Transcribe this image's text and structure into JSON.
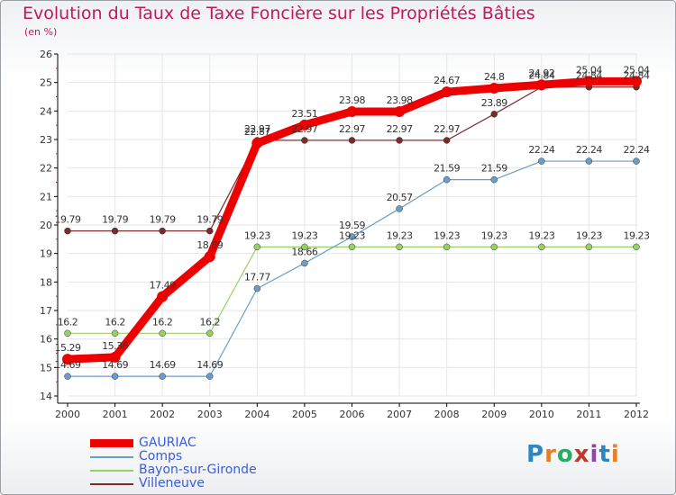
{
  "title": "Evolution du Taux de Taxe Foncière sur les Propriétés Bâties",
  "unit": "(en %)",
  "logo": "Proxiti",
  "chart_data": {
    "type": "line",
    "title": "Evolution du Taux de Taxe Foncière sur les Propriétés Bâties",
    "ylabel": "(en %)",
    "xlabel": "",
    "ylim": [
      14,
      26
    ],
    "y_ticks": [
      "14",
      "15",
      "16",
      "17",
      "18",
      "19",
      "20",
      "21",
      "22",
      "23",
      "24",
      "25",
      "26"
    ],
    "categories": [
      "2000",
      "2001",
      "2002",
      "2003",
      "2004",
      "2005",
      "2006",
      "2007",
      "2008",
      "2009",
      "2010",
      "2011",
      "2012"
    ],
    "series": [
      {
        "name": "GAURIAC",
        "color": "#ee0000",
        "values": [
          15.29,
          15.36,
          17.49,
          18.89,
          22.87,
          23.51,
          23.98,
          23.98,
          24.67,
          24.8,
          24.92,
          25.04,
          25.04
        ],
        "labels": [
          "15.29",
          "15.36",
          "17.49",
          "18.89",
          "22.87",
          "23.51",
          "23.98",
          "23.98",
          "24.67",
          "24.8",
          "24.92",
          "25.04",
          "25.04"
        ]
      },
      {
        "name": "Comps",
        "color": "#6a9ec9",
        "values": [
          14.69,
          14.69,
          14.69,
          14.69,
          17.77,
          18.66,
          19.59,
          20.57,
          21.59,
          21.59,
          22.24,
          22.24,
          22.24
        ],
        "labels": [
          "14.69",
          "14.69",
          "14.69",
          "14.69",
          "17.77",
          "18.66",
          "19.59",
          "20.57",
          "21.59",
          "21.59",
          "22.24",
          "22.24",
          "22.24"
        ]
      },
      {
        "name": "Bayon-sur-Gironde",
        "color": "#99d066",
        "values": [
          16.2,
          16.2,
          16.2,
          16.2,
          19.23,
          19.23,
          19.23,
          19.23,
          19.23,
          19.23,
          19.23,
          19.23,
          19.23
        ],
        "labels": [
          "16.2",
          "16.2",
          "16.2",
          "16.2",
          "19.23",
          "19.23",
          "19.23",
          "19.23",
          "19.23",
          "19.23",
          "19.23",
          "19.23",
          "19.23"
        ]
      },
      {
        "name": "Villeneuve",
        "color": "#7a2b2b",
        "values": [
          19.79,
          19.79,
          19.79,
          19.79,
          22.97,
          22.97,
          22.97,
          22.97,
          22.97,
          23.89,
          24.84,
          24.84,
          24.84
        ],
        "labels": [
          "19.79",
          "19.79",
          "19.79",
          "19.79",
          "22.97",
          "22.97",
          "22.97",
          "22.97",
          "22.97",
          "23.89",
          "24.84",
          "24.84",
          "24.84"
        ]
      }
    ]
  }
}
